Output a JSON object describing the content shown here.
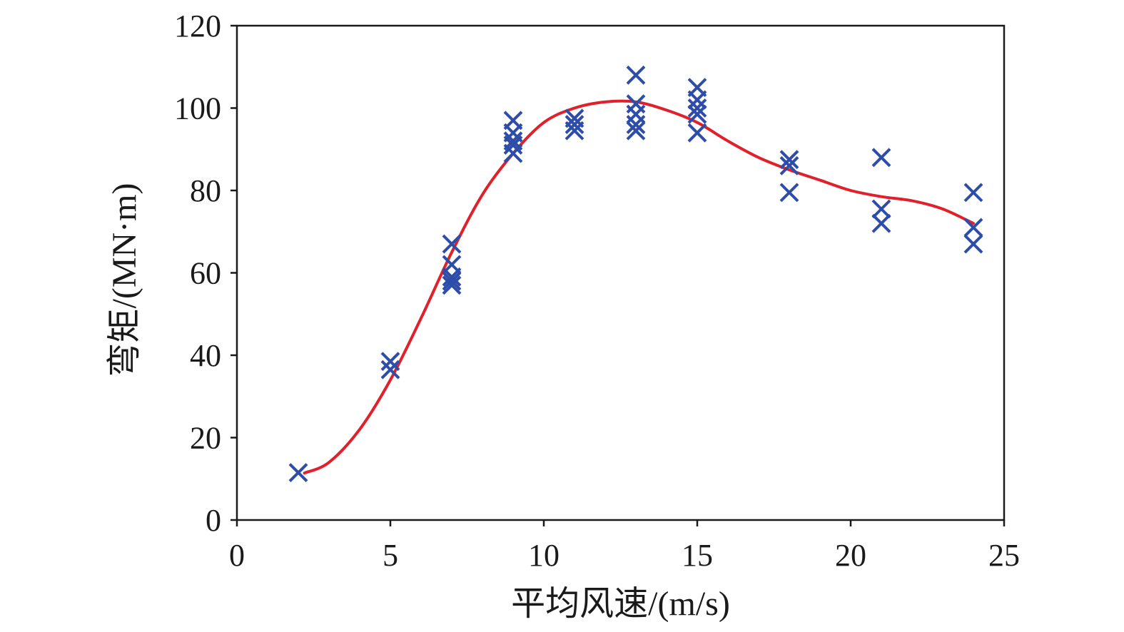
{
  "chart_data": {
    "type": "scatter",
    "title": "",
    "xlabel": "平均风速/(m/s)",
    "ylabel": "弯矩/(MN·m)",
    "xlim": [
      0,
      25
    ],
    "ylim": [
      0,
      120
    ],
    "x_ticks": [
      0,
      5,
      10,
      15,
      20,
      25
    ],
    "y_ticks": [
      0,
      20,
      40,
      60,
      80,
      100,
      120
    ],
    "x_tick_labels": [
      "0",
      "5",
      "10",
      "15",
      "20",
      "25"
    ],
    "y_tick_labels": [
      "0",
      "20",
      "40",
      "60",
      "80",
      "100",
      "120"
    ],
    "grid": false,
    "legend": "none",
    "series": [
      {
        "type": "scatter",
        "marker": "x",
        "color": "#2e4da8",
        "points": [
          [
            2,
            11.5
          ],
          [
            5,
            38.5
          ],
          [
            5,
            36.5
          ],
          [
            7,
            67
          ],
          [
            7,
            62
          ],
          [
            7,
            59
          ],
          [
            7,
            58
          ],
          [
            7,
            57
          ],
          [
            9,
            97
          ],
          [
            9,
            94
          ],
          [
            9,
            92
          ],
          [
            9,
            91
          ],
          [
            9,
            89
          ],
          [
            11,
            97.5
          ],
          [
            11,
            96
          ],
          [
            11,
            94.5
          ],
          [
            13,
            108
          ],
          [
            13,
            101
          ],
          [
            13,
            98.5
          ],
          [
            13,
            96
          ],
          [
            13,
            94.5
          ],
          [
            15,
            105
          ],
          [
            15,
            102
          ],
          [
            15,
            100
          ],
          [
            15,
            98.5
          ],
          [
            15,
            94
          ],
          [
            18,
            87.5
          ],
          [
            18,
            86
          ],
          [
            18,
            79.5
          ],
          [
            21,
            88
          ],
          [
            21,
            75.5
          ],
          [
            21,
            72
          ],
          [
            24,
            79.5
          ],
          [
            24,
            71
          ],
          [
            24,
            67
          ]
        ]
      },
      {
        "type": "line",
        "color": "#e0202a",
        "points": [
          [
            2.2,
            11.4
          ],
          [
            3,
            14
          ],
          [
            4,
            22
          ],
          [
            5,
            34
          ],
          [
            6,
            49
          ],
          [
            7,
            65
          ],
          [
            8,
            79
          ],
          [
            9,
            89
          ],
          [
            10,
            96.5
          ],
          [
            11,
            100
          ],
          [
            12,
            101.5
          ],
          [
            13,
            101.5
          ],
          [
            14,
            99.5
          ],
          [
            15,
            96.5
          ],
          [
            16,
            92
          ],
          [
            17,
            88
          ],
          [
            18,
            85
          ],
          [
            19,
            82.5
          ],
          [
            20,
            80
          ],
          [
            21,
            78.5
          ],
          [
            22,
            77.5
          ],
          [
            23,
            75.5
          ],
          [
            24,
            72
          ]
        ]
      }
    ]
  }
}
